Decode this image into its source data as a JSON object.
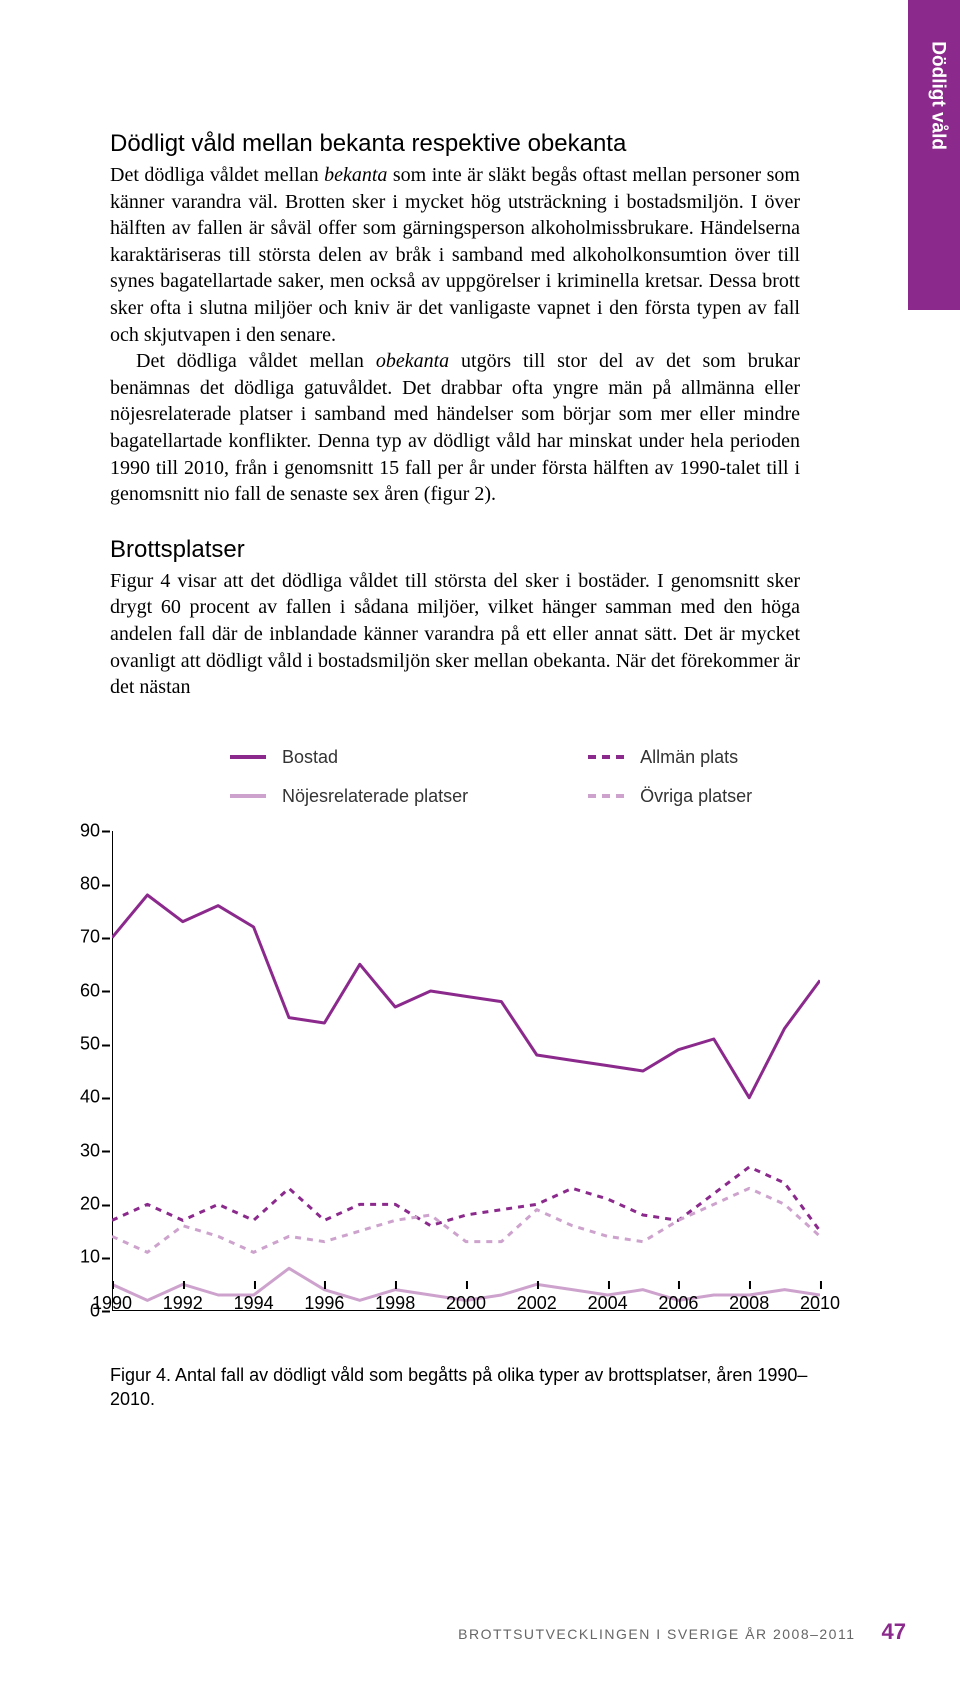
{
  "sidebar": {
    "label": "Dödligt våld"
  },
  "section1": {
    "heading": "Dödligt våld mellan bekanta respektive obekanta",
    "para1_pre": "Det dödliga våldet mellan ",
    "para1_i": "bekanta",
    "para1_post": " som inte är släkt begås oftast mellan personer som känner varandra väl. Brotten sker i mycket hög utsträckning i bostadsmiljön. I över hälften av fallen är såväl offer som gärningsperson alkoholmissbrukare. Händelserna karaktäriseras till största delen av bråk i samband med alkoholkonsumtion över till synes bagatellartade saker, men också av uppgörelser i kriminella kretsar. Dessa brott sker ofta i slutna miljöer och kniv är det vanligaste vapnet i den första typen av fall och skjutvapen i den senare.",
    "para2_pre": "Det dödliga våldet mellan ",
    "para2_i": "obekanta",
    "para2_post": " utgörs till stor del av det som brukar benämnas det dödliga gatuvåldet. Det drabbar ofta yngre män på allmänna eller nöjesrelaterade platser i samband med händelser som börjar som mer eller mindre bagatellartade konflikter. Denna typ av dödligt våld har minskat under hela perioden 1990 till 2010, från i genomsnitt 15 fall per år under första hälften av 1990-talet till i genomsnitt nio fall de senaste sex åren (figur 2)."
  },
  "section2": {
    "heading": "Brottsplatser",
    "para": "Figur 4 visar att det dödliga våldet till största del sker i bostäder. I genomsnitt sker drygt 60 procent av fallen i sådana miljöer, vilket hänger samman med den höga andelen fall där de inblandade känner varandra på ett eller annat sätt. Det är mycket ovanligt att dödligt våld i bostadsmiljön sker mellan obekanta. När det förekommer är det nästan"
  },
  "legend": {
    "items": [
      {
        "label": "Bostad",
        "color": "#8b2a8c",
        "dash": "solid",
        "width": 4
      },
      {
        "label": "Nöjesrelaterade platser",
        "color": "#cda3cd",
        "dash": "solid",
        "width": 4
      },
      {
        "label": "Allmän plats",
        "color": "#8b2a8c",
        "dash": "dashed",
        "width": 4
      },
      {
        "label": "Övriga platser",
        "color": "#cda3cd",
        "dash": "dashed",
        "width": 4
      }
    ]
  },
  "chart": {
    "type": "line",
    "ylim": [
      0,
      90
    ],
    "ytick_step": 10,
    "xlim": [
      1990,
      2010
    ],
    "xtick_step": 2,
    "background": "#ffffff",
    "axis_color": "#000000",
    "label_fontsize": 18,
    "label_font": "Arial",
    "series": [
      {
        "name": "Bostad",
        "color": "#8b2a8c",
        "dash": "",
        "width": 3,
        "x": [
          1990,
          1991,
          1992,
          1993,
          1994,
          1995,
          1996,
          1997,
          1998,
          1999,
          2000,
          2001,
          2002,
          2003,
          2004,
          2005,
          2006,
          2007,
          2008,
          2009,
          2010
        ],
        "y": [
          70,
          78,
          73,
          76,
          72,
          55,
          54,
          65,
          57,
          60,
          59,
          58,
          48,
          47,
          46,
          45,
          49,
          51,
          40,
          53,
          62
        ]
      },
      {
        "name": "Allmän plats",
        "color": "#8b2a8c",
        "dash": "6,6",
        "width": 3,
        "x": [
          1990,
          1991,
          1992,
          1993,
          1994,
          1995,
          1996,
          1997,
          1998,
          1999,
          2000,
          2001,
          2002,
          2003,
          2004,
          2005,
          2006,
          2007,
          2008,
          2009,
          2010
        ],
        "y": [
          17,
          20,
          17,
          20,
          17,
          23,
          17,
          20,
          20,
          16,
          18,
          19,
          20,
          23,
          21,
          18,
          17,
          22,
          27,
          24,
          15
        ]
      },
      {
        "name": "Övriga platser",
        "color": "#cda3cd",
        "dash": "6,6",
        "width": 3,
        "x": [
          1990,
          1991,
          1992,
          1993,
          1994,
          1995,
          1996,
          1997,
          1998,
          1999,
          2000,
          2001,
          2002,
          2003,
          2004,
          2005,
          2006,
          2007,
          2008,
          2009,
          2010
        ],
        "y": [
          14,
          11,
          16,
          14,
          11,
          14,
          13,
          15,
          17,
          18,
          13,
          13,
          19,
          16,
          14,
          13,
          17,
          20,
          23,
          20,
          14
        ]
      },
      {
        "name": "Nöjesrelaterade",
        "color": "#cda3cd",
        "dash": "",
        "width": 3,
        "x": [
          1990,
          1991,
          1992,
          1993,
          1994,
          1995,
          1996,
          1997,
          1998,
          1999,
          2000,
          2001,
          2002,
          2003,
          2004,
          2005,
          2006,
          2007,
          2008,
          2009,
          2010
        ],
        "y": [
          5,
          2,
          5,
          3,
          3,
          8,
          4,
          2,
          4,
          3,
          2,
          3,
          5,
          4,
          3,
          4,
          2,
          3,
          3,
          4,
          3
        ]
      }
    ]
  },
  "caption": "Figur 4. Antal fall av dödligt våld som begåtts på olika typer av brottsplatser, åren 1990–2010.",
  "footer": {
    "text": "brottsutvecklingen i sverige år 2008–2011",
    "page": "47"
  }
}
